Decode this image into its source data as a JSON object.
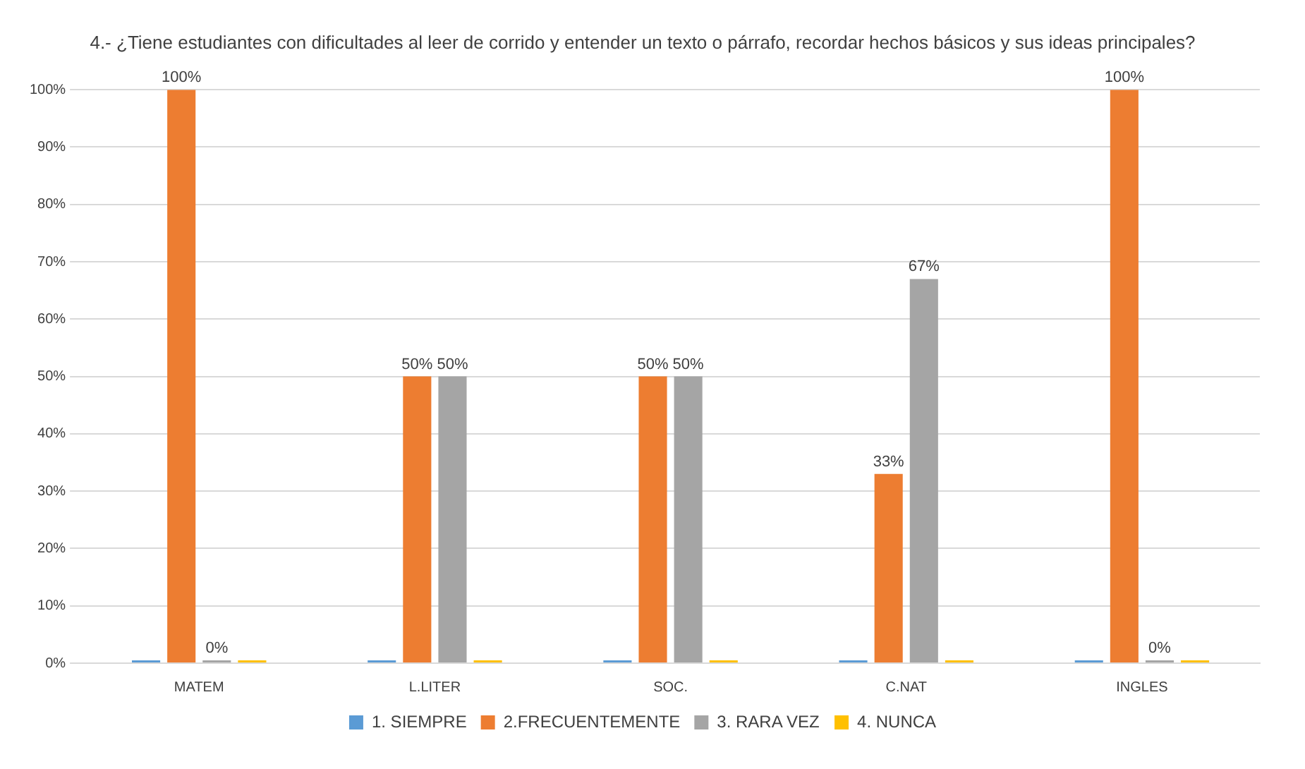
{
  "chart_data": {
    "type": "bar",
    "title": "4.- ¿Tiene estudiantes con dificultades al leer de corrido y entender un texto o párrafo, recordar hechos básicos y sus ideas principales?",
    "categories": [
      "MATEM",
      "L.LITER",
      "SOC.",
      "C.NAT",
      "INGLES"
    ],
    "series": [
      {
        "name": "1. SIEMPRE",
        "color": "#5b9bd5",
        "values": [
          0,
          0,
          0,
          0,
          0
        ],
        "value_labels": [
          null,
          null,
          null,
          null,
          null
        ]
      },
      {
        "name": "2.FRECUENTEMENTE",
        "color": "#ed7d31",
        "values": [
          100,
          50,
          50,
          33,
          100
        ],
        "value_labels": [
          "100%",
          "50%",
          "50%",
          "33%",
          "100%"
        ]
      },
      {
        "name": "3. RARA VEZ",
        "color": "#a5a5a5",
        "values": [
          0,
          50,
          50,
          67,
          0
        ],
        "value_labels": [
          "0%",
          "50%",
          "50%",
          "67%",
          "0%"
        ]
      },
      {
        "name": "4. NUNCA",
        "color": "#ffc000",
        "values": [
          0,
          0,
          0,
          0,
          0
        ],
        "value_labels": [
          null,
          null,
          null,
          null,
          null
        ]
      }
    ],
    "ylim": [
      0,
      100
    ],
    "yticks": [
      {
        "value": 0,
        "label": "0%"
      },
      {
        "value": 10,
        "label": "10%"
      },
      {
        "value": 20,
        "label": "20%"
      },
      {
        "value": 30,
        "label": "30%"
      },
      {
        "value": 40,
        "label": "40%"
      },
      {
        "value": 50,
        "label": "50%"
      },
      {
        "value": 60,
        "label": "60%"
      },
      {
        "value": 70,
        "label": "70%"
      },
      {
        "value": 80,
        "label": "80%"
      },
      {
        "value": 90,
        "label": "90%"
      },
      {
        "value": 100,
        "label": "100%"
      }
    ],
    "grid": "y",
    "legend": "bottom"
  }
}
